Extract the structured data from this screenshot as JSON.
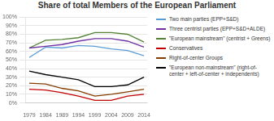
{
  "chart_data": {
    "type": "line",
    "title": "Share of total Members of the European Parliament",
    "x": [
      1979,
      1984,
      1989,
      1994,
      1999,
      2004,
      2009,
      2014
    ],
    "series": [
      {
        "name": "Two main parties (EPP+S&D)",
        "color": "#5B9BD5",
        "values": [
          53,
          65,
          64,
          67,
          66,
          63,
          61,
          55
        ]
      },
      {
        "name": "Three centrist parties (EPP+S&D+ALDE)",
        "color": "#7030A0",
        "values": [
          64,
          66,
          68,
          72,
          75,
          75,
          72,
          65
        ]
      },
      {
        "name": "\"European mainstream\" (centrist + Greens)",
        "color": "#548235",
        "values": [
          64,
          73,
          74,
          76,
          82,
          82,
          80,
          71
        ]
      },
      {
        "name": "Conservatives",
        "color": "#C00000",
        "values": [
          16,
          15,
          12,
          8,
          3,
          3,
          8,
          10
        ]
      },
      {
        "name": "Right-of-center Groups",
        "color": "#833C00",
        "values": [
          23,
          22,
          17,
          14,
          8,
          10,
          13,
          16
        ]
      },
      {
        "name": "\"European non-mainstream\" (right-of-\ncenter + left-of-center + independents)",
        "color": "#000000",
        "values": [
          37,
          33,
          30,
          27,
          19,
          19,
          21,
          30
        ]
      }
    ],
    "xlim": [
      1978,
      2015
    ],
    "xticks": [
      1979,
      1984,
      1989,
      1994,
      1999,
      2004,
      2009,
      2014
    ],
    "ylim": [
      0,
      100
    ],
    "yticks": [
      {
        "value": 0,
        "label": "0%"
      },
      {
        "value": 10,
        "label": "10%"
      },
      {
        "value": 20,
        "label": "20%"
      },
      {
        "value": 30,
        "label": "30%"
      },
      {
        "value": 40,
        "label": "40%"
      },
      {
        "value": 50,
        "label": "50%"
      },
      {
        "value": 60,
        "label": "60%"
      },
      {
        "value": 70,
        "label": "70%"
      },
      {
        "value": 80,
        "label": "80%"
      },
      {
        "value": 90,
        "label": "90%"
      },
      {
        "value": 100,
        "label": "100%"
      }
    ],
    "grid": "y",
    "legend": "right"
  }
}
